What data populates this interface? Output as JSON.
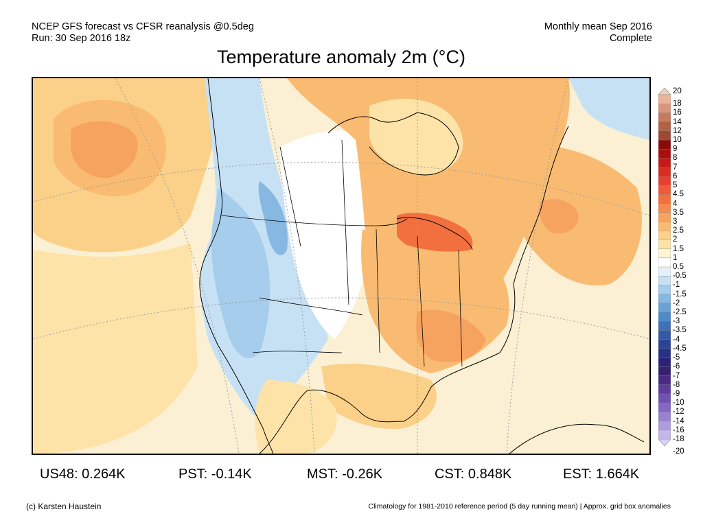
{
  "header": {
    "line1_left": "NCEP GFS forecast vs CFSR reanalysis @0.5deg",
    "line2_left": "Run: 30 Sep 2016 18z",
    "line1_right": "Monthly mean Sep 2016",
    "line2_right": "Complete"
  },
  "title": "Temperature anomaly 2m (°C)",
  "colorbar": {
    "labels": [
      "20",
      "18",
      "16",
      "14",
      "12",
      "10",
      "9",
      "8",
      "7",
      "6",
      "5",
      "4.5",
      "4",
      "3.5",
      "3",
      "2.5",
      "2",
      "1.5",
      "1",
      "0.5",
      "-0.5",
      "-1",
      "-1.5",
      "-2",
      "-2.5",
      "-3",
      "-3.5",
      "-4",
      "-4.5",
      "-5",
      "-6",
      "-7",
      "-8",
      "-9",
      "-10",
      "-12",
      "-14",
      "-16",
      "-18",
      "-20"
    ],
    "colors": [
      "#f4cdb8",
      "#eab39a",
      "#d9967c",
      "#c47a5f",
      "#b06146",
      "#9b4a32",
      "#8a0a0a",
      "#a80f0f",
      "#c41a1a",
      "#d92c22",
      "#e6402e",
      "#ee5a3a",
      "#f2703e",
      "#f58a4c",
      "#f7a360",
      "#f9bb72",
      "#fbd089",
      "#fde3a8",
      "#fff4d6",
      "#ffffff",
      "#e4f1fb",
      "#c7e1f4",
      "#a6cdeb",
      "#86b8e1",
      "#6aa2d6",
      "#5089c9",
      "#3f70b8",
      "#3459a6",
      "#2c4495",
      "#283285",
      "#2a2278",
      "#36216e",
      "#4b2a86",
      "#5e3b9c",
      "#7152b1",
      "#8568c2",
      "#9a82d1",
      "#ae9cdd",
      "#c3b7e8",
      "#d9d2f2"
    ]
  },
  "stats": [
    {
      "label": "US48: 0.264K"
    },
    {
      "label": "PST: -0.14K"
    },
    {
      "label": "MST: -0.26K"
    },
    {
      "label": "CST: 0.848K"
    },
    {
      "label": "EST: 1.664K"
    }
  ],
  "footer": {
    "left": "(c) Karsten Haustein",
    "right": "Climatology for 1981-2010 reference period (5 day running mean) | Approx. grid box anomalies"
  },
  "map_colors": {
    "ocean_base": "#fbf0d4",
    "warm_light": "#fde3a8",
    "warm_mid": "#fbd089",
    "warm": "#f9bb72",
    "warm_strong": "#f7a360",
    "warm_hot": "#f2703e",
    "cool_light": "#e4f1fb",
    "cool_mid": "#c7e1f4",
    "cool": "#a6cdeb",
    "cool_strong": "#86b8e1"
  }
}
